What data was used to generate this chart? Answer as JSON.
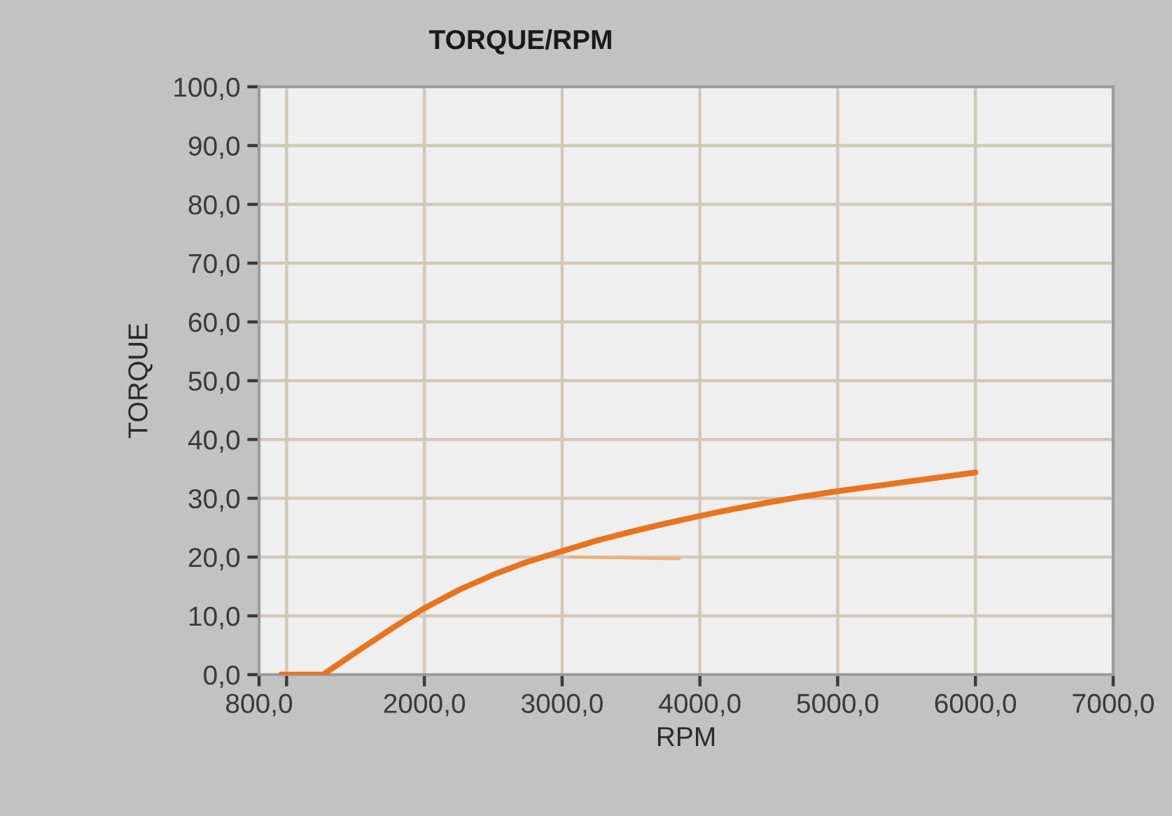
{
  "chart_data": {
    "type": "line",
    "title": "TORQUE/RPM",
    "xlabel": "RPM",
    "ylabel": "TORQUE",
    "series": [
      {
        "color": "#e8741e",
        "x": [
          960,
          1264,
          1515,
          1780,
          2000,
          2250,
          2500,
          2750,
          3000,
          3250,
          3500,
          3750,
          4000,
          4250,
          4500,
          4750,
          5000,
          5250,
          5500,
          5750,
          6000
        ],
        "values": [
          0,
          0,
          4.0,
          8.1,
          11.3,
          14.4,
          17.0,
          19.2,
          21.0,
          22.8,
          24.3,
          25.7,
          27.0,
          28.2,
          29.3,
          30.3,
          31.2,
          32.0,
          32.8,
          33.6,
          34.4
        ]
      },
      {
        "color": "#f2ad72",
        "x": [
          3050,
          3850
        ],
        "values": [
          20,
          19.7
        ]
      }
    ],
    "xlim": [
      800,
      7000
    ],
    "xticks": [
      {
        "value": 800,
        "label": "800,0"
      },
      {
        "value": 1000,
        "label": null
      },
      {
        "value": 2000,
        "label": "2000,0"
      },
      {
        "value": 3000,
        "label": "3000,0"
      },
      {
        "value": 4000,
        "label": "4000,0"
      },
      {
        "value": 5000,
        "label": "5000,0"
      },
      {
        "value": 6000,
        "label": "6000,0"
      },
      {
        "value": 7000,
        "label": "7000,0"
      }
    ],
    "ylim": [
      0,
      100
    ],
    "yticks": [
      {
        "value": 0,
        "label": "0,0"
      },
      {
        "value": 10,
        "label": "10,0"
      },
      {
        "value": 20,
        "label": "20,0"
      },
      {
        "value": 30,
        "label": "30,0"
      },
      {
        "value": 40,
        "label": "40,0"
      },
      {
        "value": 50,
        "label": "50,0"
      },
      {
        "value": 60,
        "label": "60,0"
      },
      {
        "value": 70,
        "label": "70,0"
      },
      {
        "value": 80,
        "label": "80,0"
      },
      {
        "value": 90,
        "label": "90,0"
      },
      {
        "value": 100,
        "label": "100,0"
      }
    ],
    "grid": true,
    "line_style": "solid"
  }
}
